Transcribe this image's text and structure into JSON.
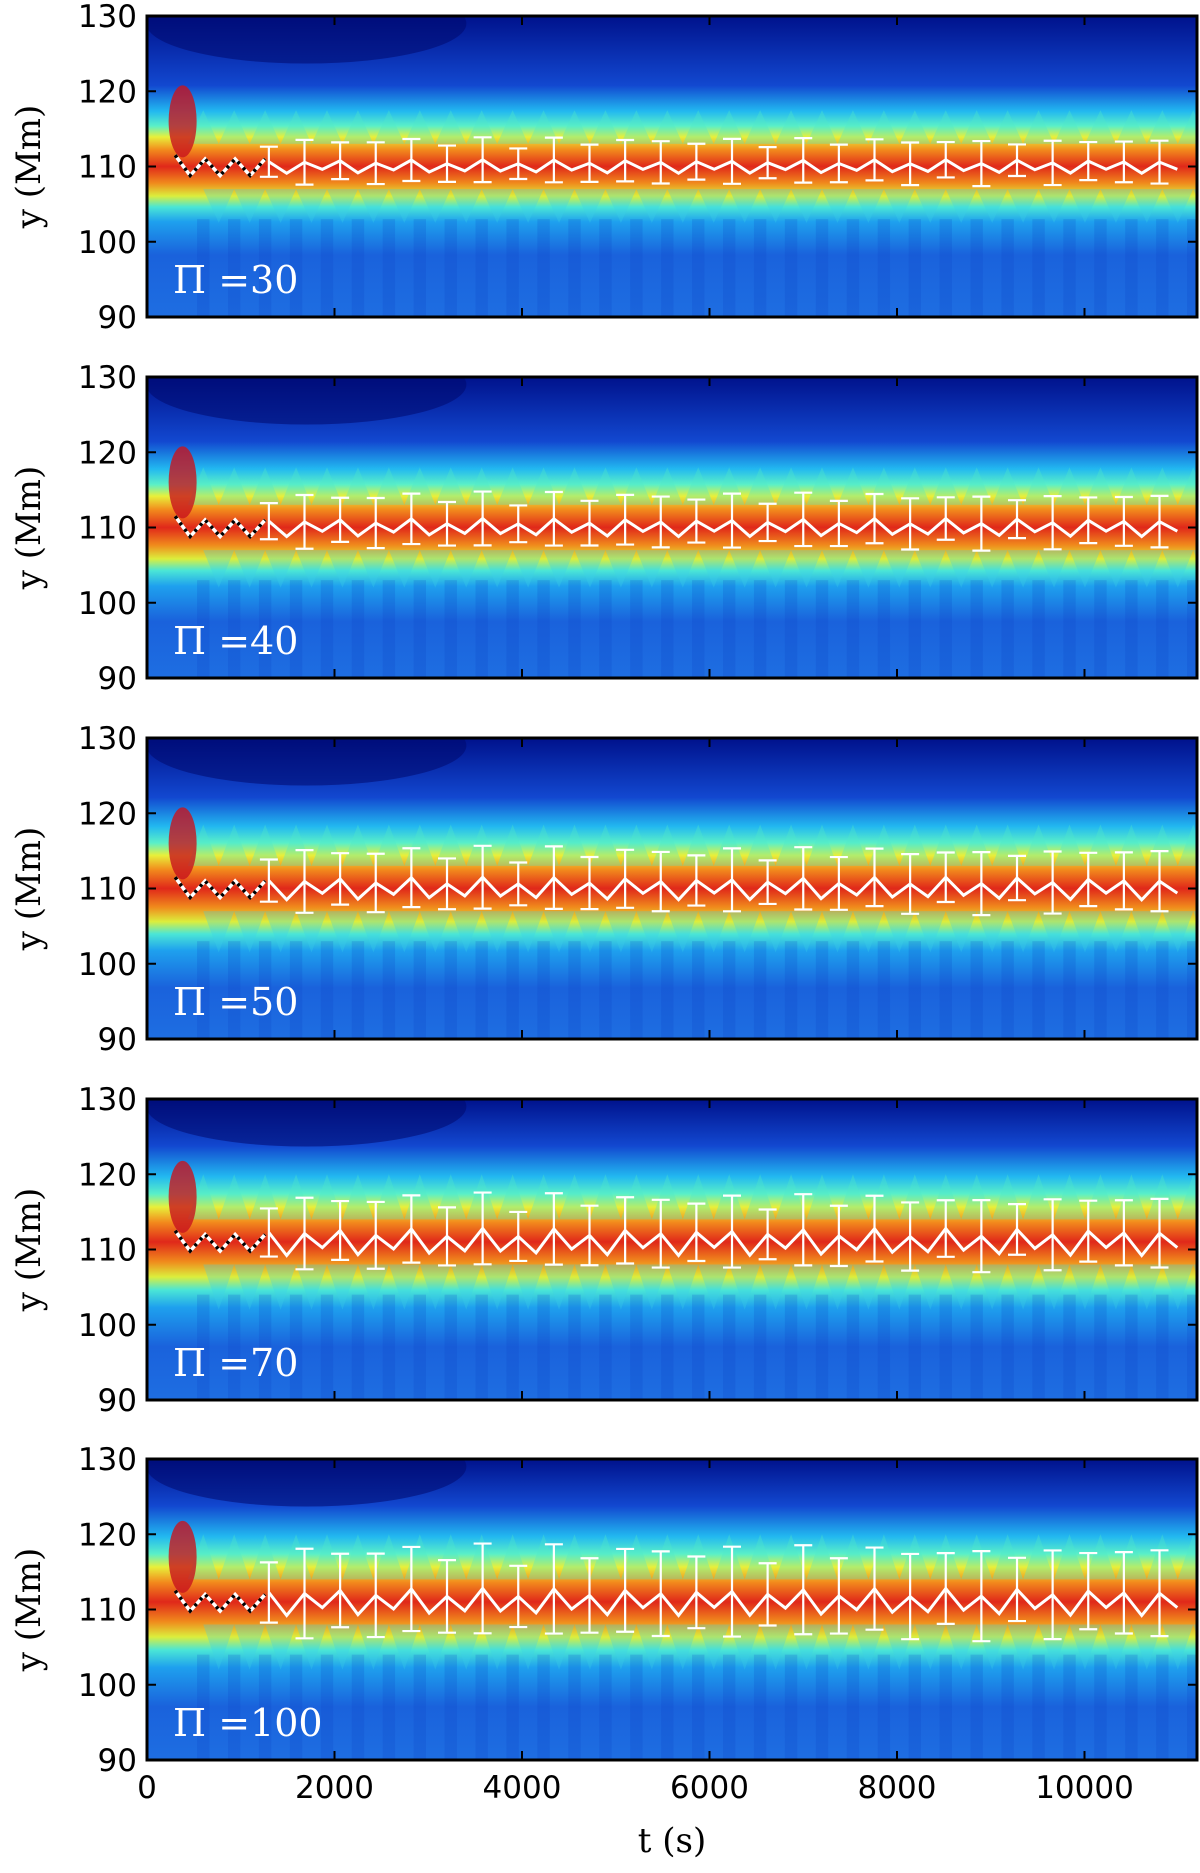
{
  "chart_data": [
    {
      "type": "heatmap",
      "panel_label": "Π =30",
      "xlim": [
        0,
        11200
      ],
      "ylim": [
        90,
        130
      ],
      "yticks": [
        "90",
        "100",
        "110",
        "120",
        "130"
      ],
      "ylabel": "y (Mm)",
      "colormap": "jet",
      "center_line_mean": 110,
      "oscillation_amplitude": 1.5,
      "errorbar_half_width": 2.5,
      "series": [
        {
          "name": "",
          "style": "white line with white error bars",
          "t_range": [
            1300,
            11100
          ]
        },
        {
          "name": "",
          "style": "black dotted",
          "t_range": [
            300,
            1300
          ]
        }
      ]
    },
    {
      "type": "heatmap",
      "panel_label": "Π =40",
      "xlim": [
        0,
        11200
      ],
      "ylim": [
        90,
        130
      ],
      "yticks": [
        "90",
        "100",
        "110",
        "120",
        "130"
      ],
      "ylabel": "y (Mm)",
      "colormap": "jet",
      "center_line_mean": 110,
      "oscillation_amplitude": 2,
      "errorbar_half_width": 3,
      "series": [
        {
          "name": "",
          "style": "white line with white error bars",
          "t_range": [
            1300,
            11100
          ]
        },
        {
          "name": "",
          "style": "black dotted",
          "t_range": [
            300,
            1300
          ]
        }
      ]
    },
    {
      "type": "heatmap",
      "panel_label": "Π =50",
      "xlim": [
        0,
        11200
      ],
      "ylim": [
        90,
        130
      ],
      "yticks": [
        "90",
        "100",
        "110",
        "120",
        "130"
      ],
      "ylabel": "y (Mm)",
      "colormap": "jet",
      "center_line_mean": 110,
      "oscillation_amplitude": 2.5,
      "errorbar_half_width": 3.5,
      "series": [
        {
          "name": "",
          "style": "white line with white error bars",
          "t_range": [
            1300,
            11100
          ]
        },
        {
          "name": "",
          "style": "black dotted",
          "t_range": [
            300,
            1300
          ]
        }
      ]
    },
    {
      "type": "heatmap",
      "panel_label": "Π =70",
      "xlim": [
        0,
        11200
      ],
      "ylim": [
        90,
        130
      ],
      "yticks": [
        "90",
        "100",
        "110",
        "120",
        "130"
      ],
      "ylabel": "y (Mm)",
      "colormap": "jet",
      "center_line_mean": 111,
      "oscillation_amplitude": 3,
      "errorbar_half_width": 4,
      "series": [
        {
          "name": "",
          "style": "white line with white error bars",
          "t_range": [
            1300,
            11100
          ]
        },
        {
          "name": "",
          "style": "black dotted",
          "t_range": [
            300,
            1300
          ]
        }
      ]
    },
    {
      "type": "heatmap",
      "panel_label": "Π =100",
      "xlim": [
        0,
        11200
      ],
      "ylim": [
        90,
        130
      ],
      "yticks": [
        "90",
        "100",
        "110",
        "120",
        "130"
      ],
      "ylabel": "y (Mm)",
      "xticks": [
        "0",
        "2000",
        "4000",
        "6000",
        "8000",
        "10000"
      ],
      "xlabel": "t (s)",
      "colormap": "jet",
      "center_line_mean": 111,
      "oscillation_amplitude": 3,
      "errorbar_half_width": 5,
      "series": [
        {
          "name": "",
          "style": "white line with white error bars",
          "t_range": [
            1300,
            11100
          ]
        },
        {
          "name": "",
          "style": "black dotted",
          "t_range": [
            300,
            1300
          ]
        }
      ]
    }
  ],
  "colors": {
    "background_deep": "#00008f",
    "background_blue": "#1e6fe0",
    "band_cyan": "#28e6e6",
    "band_yellow": "#f5e61e",
    "band_red": "#e6281e",
    "line_white": "#ffffff",
    "line_black": "#000000"
  }
}
